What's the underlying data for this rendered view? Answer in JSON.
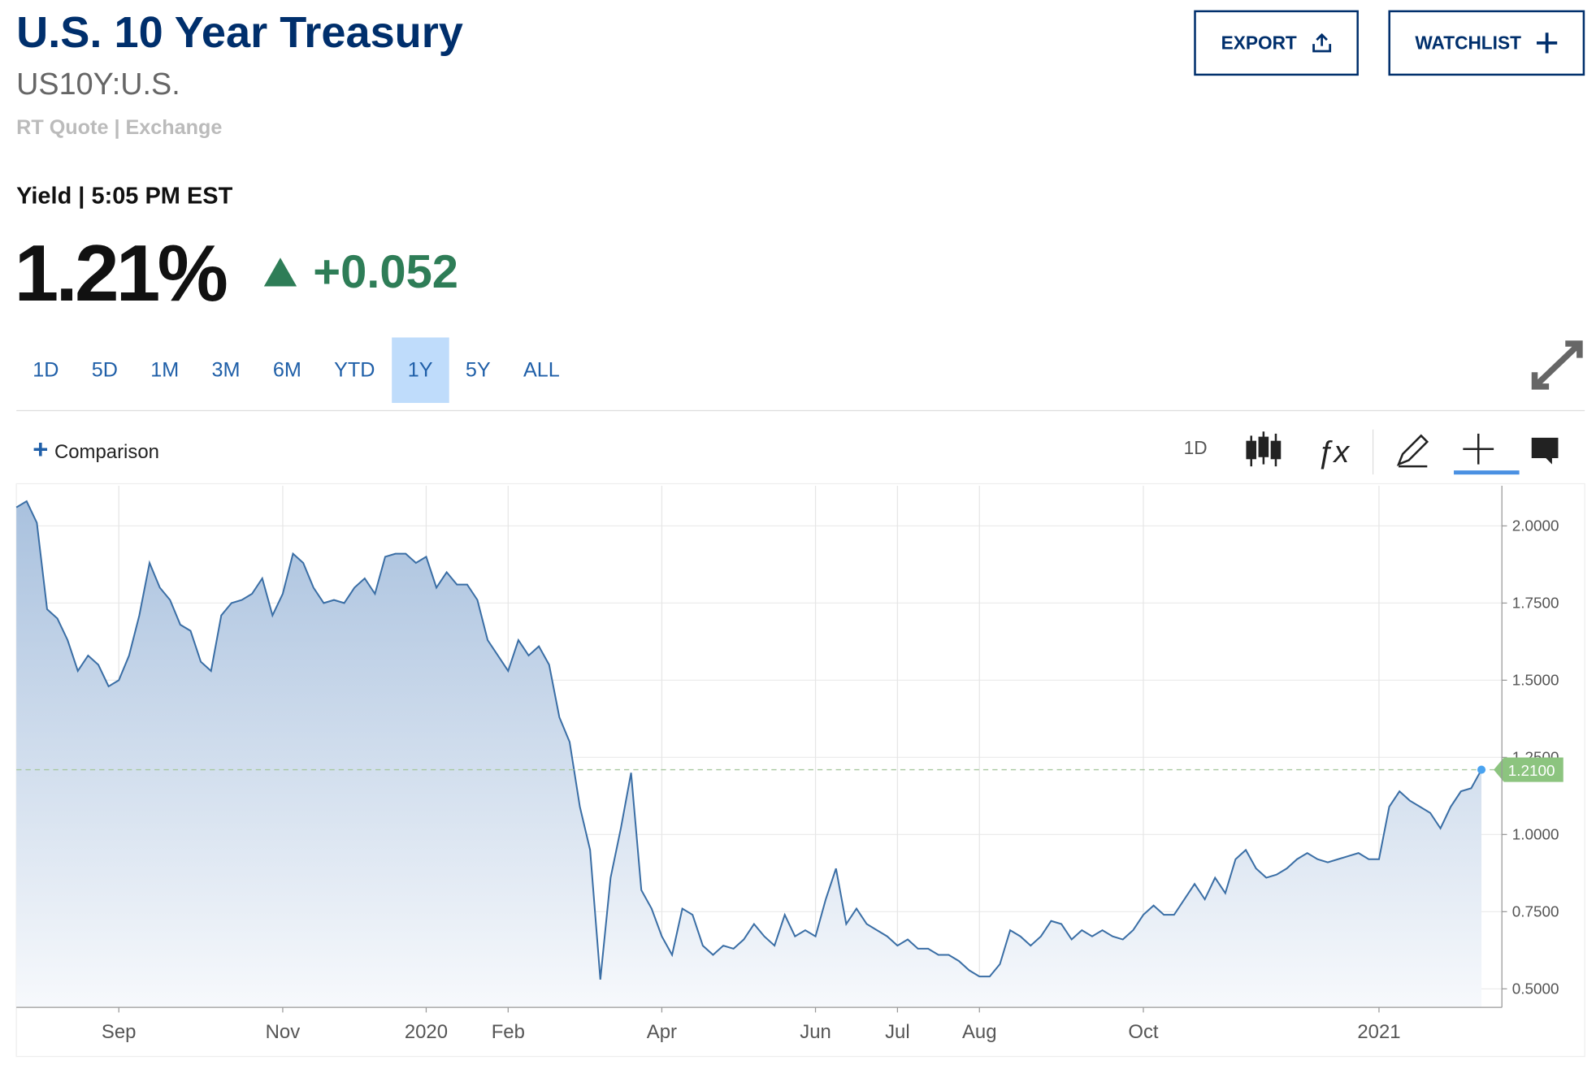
{
  "header": {
    "title": "U.S. 10 Year Treasury",
    "symbol": "US10Y:U.S.",
    "source": "RT Quote | Exchange",
    "buttons": [
      "EXPORT",
      "WATCHLIST"
    ]
  },
  "quote": {
    "label": "Yield | 5:05 PM EST",
    "price": "1.21%",
    "change": "+0.052"
  },
  "ranges": {
    "items": [
      "1D",
      "5D",
      "1M",
      "3M",
      "6M",
      "YTD",
      "1Y",
      "5Y",
      "ALL"
    ],
    "selected": "1Y"
  },
  "toolbar": {
    "comparison": "Comparison",
    "interval": "1D"
  },
  "chart_data": {
    "type": "area",
    "color": "#3a6ea5",
    "grid": true,
    "categories": [
      null,
      null,
      null,
      null,
      null,
      null,
      null,
      null,
      null,
      null,
      "Sep",
      null,
      null,
      null,
      null,
      null,
      null,
      null,
      null,
      null,
      null,
      null,
      null,
      null,
      null,
      null,
      "Nov",
      null,
      null,
      null,
      null,
      null,
      null,
      null,
      null,
      null,
      null,
      null,
      null,
      null,
      "2020",
      null,
      null,
      null,
      null,
      null,
      null,
      null,
      "Feb",
      null,
      null,
      null,
      null,
      null,
      null,
      null,
      null,
      null,
      null,
      null,
      null,
      null,
      null,
      "Apr",
      null,
      null,
      null,
      null,
      null,
      null,
      null,
      null,
      null,
      null,
      null,
      null,
      null,
      null,
      "Jun",
      null,
      null,
      null,
      null,
      null,
      null,
      null,
      "Jul",
      null,
      null,
      null,
      null,
      null,
      null,
      null,
      "Aug",
      null,
      null,
      null,
      null,
      null,
      null,
      null,
      null,
      null,
      null,
      null,
      null,
      null,
      null,
      null,
      "Oct",
      null,
      null,
      null,
      null,
      null,
      null,
      null,
      null,
      null,
      null,
      null,
      null,
      null,
      null,
      null,
      null,
      null,
      null,
      null,
      null,
      null,
      null,
      "2021",
      null,
      null,
      null,
      null,
      null,
      null,
      null,
      null,
      null,
      null
    ],
    "values": [
      2.06,
      2.08,
      2.01,
      1.73,
      1.7,
      1.63,
      1.53,
      1.58,
      1.55,
      1.48,
      1.5,
      1.58,
      1.71,
      1.88,
      1.8,
      1.76,
      1.68,
      1.66,
      1.56,
      1.53,
      1.71,
      1.75,
      1.76,
      1.78,
      1.83,
      1.71,
      1.78,
      1.91,
      1.88,
      1.8,
      1.75,
      1.76,
      1.75,
      1.8,
      1.83,
      1.78,
      1.9,
      1.91,
      1.91,
      1.88,
      1.9,
      1.8,
      1.85,
      1.81,
      1.81,
      1.76,
      1.63,
      1.58,
      1.53,
      1.63,
      1.58,
      1.61,
      1.55,
      1.38,
      1.3,
      1.09,
      0.95,
      0.53,
      0.86,
      1.02,
      1.2,
      0.82,
      0.76,
      0.67,
      0.61,
      0.76,
      0.74,
      0.64,
      0.61,
      0.64,
      0.63,
      0.66,
      0.71,
      0.67,
      0.64,
      0.74,
      0.67,
      0.69,
      0.67,
      0.79,
      0.89,
      0.71,
      0.76,
      0.71,
      0.69,
      0.67,
      0.64,
      0.66,
      0.63,
      0.63,
      0.61,
      0.61,
      0.59,
      0.56,
      0.54,
      0.54,
      0.58,
      0.69,
      0.67,
      0.64,
      0.67,
      0.72,
      0.71,
      0.66,
      0.69,
      0.67,
      0.69,
      0.67,
      0.66,
      0.69,
      0.74,
      0.77,
      0.74,
      0.74,
      0.79,
      0.84,
      0.79,
      0.86,
      0.81,
      0.92,
      0.95,
      0.89,
      0.86,
      0.87,
      0.89,
      0.92,
      0.94,
      0.92,
      0.91,
      0.92,
      0.93,
      0.94,
      0.92,
      0.92,
      1.09,
      1.14,
      1.11,
      1.09,
      1.07,
      1.02,
      1.09,
      1.14,
      1.15,
      1.21
    ],
    "last_value_label": "1.2100",
    "ylim": [
      0.44,
      2.13
    ],
    "yticks": [
      {
        "value": 0.5,
        "label": "0.5000"
      },
      {
        "value": 0.75,
        "label": "0.7500"
      },
      {
        "value": 1,
        "label": "1.0000"
      },
      {
        "value": 1.25,
        "label": "1.2500"
      },
      {
        "value": 1.5,
        "label": "1.5000"
      },
      {
        "value": 1.75,
        "label": "1.7500"
      },
      {
        "value": 2,
        "label": "2.0000"
      }
    ]
  }
}
